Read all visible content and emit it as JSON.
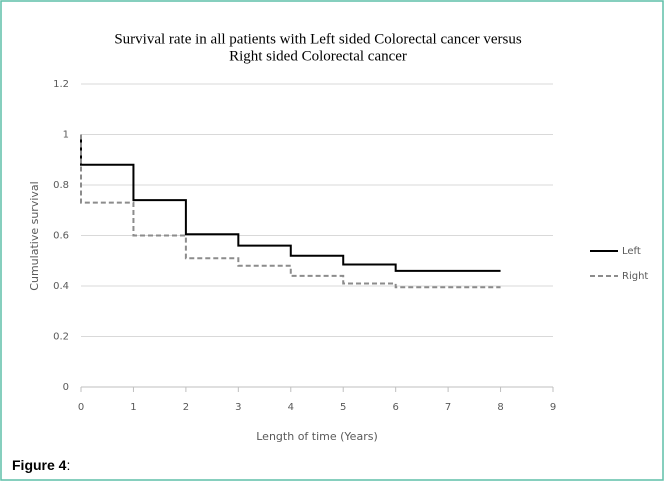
{
  "chart_data": {
    "type": "step",
    "title": [
      "Survival rate in all patients with Left sided Colorectal cancer versus",
      "Right sided Colorectal cancer"
    ],
    "x_label": "Length of time (Years)",
    "y_label": "Cumulative survival",
    "x": [
      0,
      1,
      2,
      3,
      4,
      5,
      6,
      7,
      8
    ],
    "series": [
      {
        "name": "Left",
        "color": "#000000",
        "dash": false,
        "values": [
          1,
          0.88,
          0.74,
          0.605,
          0.56,
          0.52,
          0.485,
          0.46,
          0.46
        ]
      },
      {
        "name": "Right",
        "color": "#8c8c8c",
        "dash": true,
        "values": [
          1,
          0.73,
          0.6,
          0.51,
          0.48,
          0.44,
          0.41,
          0.395,
          0.395
        ]
      }
    ],
    "xlim": [
      0,
      9
    ],
    "xticks": [
      0,
      1,
      2,
      3,
      4,
      5,
      6,
      7,
      8,
      9
    ],
    "ylim": [
      0,
      1.2
    ],
    "yticks": [
      0,
      0.2,
      0.4,
      0.6,
      0.8,
      1,
      1.2
    ],
    "grid": true,
    "legend": "right"
  },
  "figure_label": {
    "name": "Figure 4",
    "suffix": ":"
  }
}
